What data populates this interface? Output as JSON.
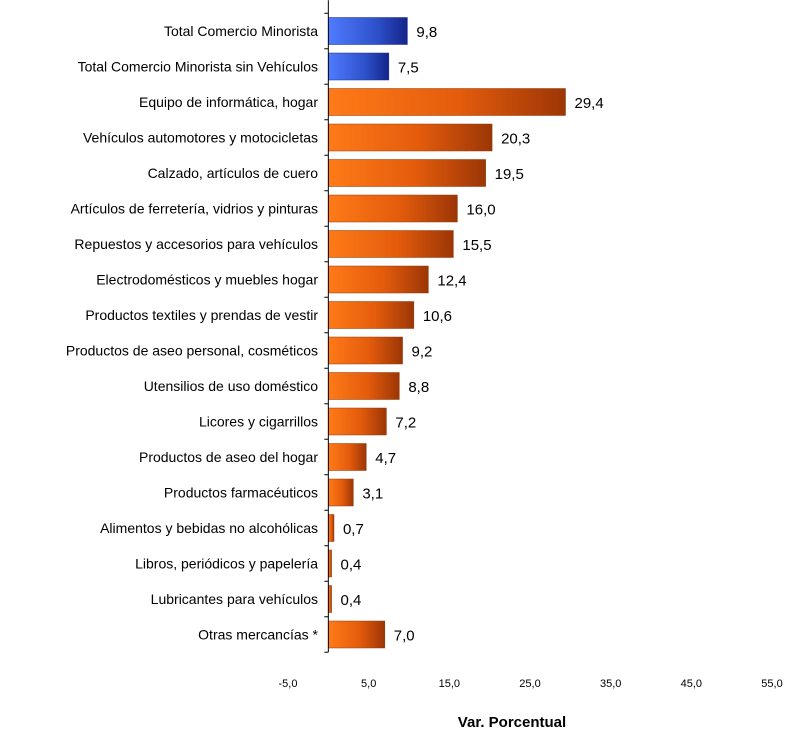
{
  "chart_data": {
    "type": "bar",
    "orientation": "horizontal",
    "categories": [
      "Total Comercio Minorista",
      "Total Comercio Minorista sin Vehículos",
      "Equipo de informática, hogar",
      "Vehículos automotores y motocicletas",
      "Calzado, artículos de cuero",
      "Artículos de ferretería, vidrios y pinturas",
      "Repuestos y accesorios para vehículos",
      "Electrodomésticos y muebles hogar",
      "Productos textiles y prendas de vestir",
      "Productos de aseo personal, cosméticos",
      "Utensilios de uso doméstico",
      "Licores y cigarrillos",
      "Productos de aseo del hogar",
      "Productos farmacéuticos",
      "Alimentos y bebidas no alcohólicas",
      "Libros, periódicos y papelería",
      "Lubricantes para vehículos",
      "Otras mercancías *"
    ],
    "values": [
      9.8,
      7.5,
      29.4,
      20.3,
      19.5,
      16.0,
      15.5,
      12.4,
      10.6,
      9.2,
      8.8,
      7.2,
      4.7,
      3.1,
      0.7,
      0.4,
      0.4,
      7.0
    ],
    "value_labels": [
      "9,8",
      "7,5",
      "29,4",
      "20,3",
      "19,5",
      "16,0",
      "15,5",
      "12,4",
      "10,6",
      "9,2",
      "8,8",
      "7,2",
      "4,7",
      "3,1",
      "0,7",
      "0,4",
      "0,4",
      "7,0"
    ],
    "bar_colors": [
      "#3a5fd6",
      "#3a5fd6",
      "#e8620e",
      "#e8620e",
      "#e8620e",
      "#e8620e",
      "#e8620e",
      "#e8620e",
      "#e8620e",
      "#e8620e",
      "#e8620e",
      "#e8620e",
      "#e8620e",
      "#e8620e",
      "#e8620e",
      "#e8620e",
      "#e8620e",
      "#e8620e"
    ],
    "x_ticks": [
      -5,
      5,
      15,
      25,
      35,
      45,
      55
    ],
    "x_tick_labels": [
      "-5,0",
      "5,0",
      "15,0",
      "25,0",
      "35,0",
      "45,0",
      "55,0"
    ],
    "xlim": [
      -5,
      55
    ],
    "xlabel": "Var. Porcentual",
    "ylabel": "",
    "grid": false,
    "legend": false
  }
}
